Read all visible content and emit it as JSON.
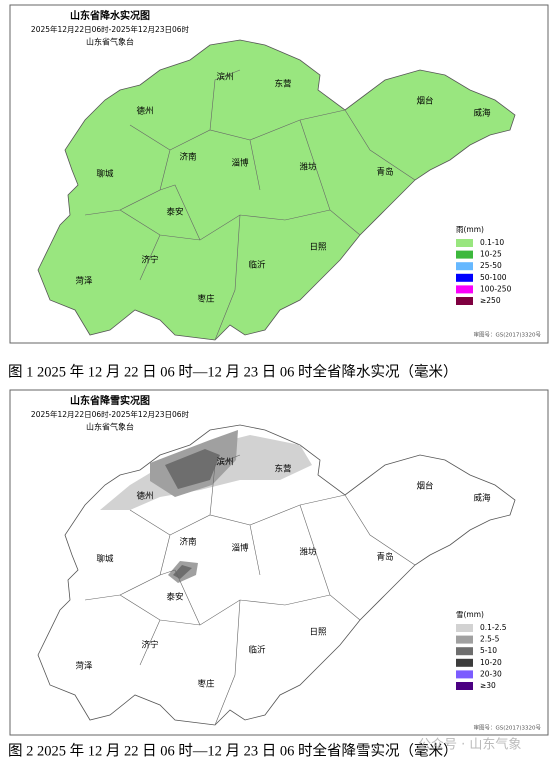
{
  "figures": [
    {
      "title": "山东省降水实况图",
      "period": "2025年12月22日06时-2025年12月23日06时",
      "issuer": "山东省气象台",
      "cities": [
        "滨州",
        "东营",
        "烟台",
        "威海",
        "德州",
        "济南",
        "淄博",
        "潍坊",
        "青岛",
        "聊城",
        "泰安",
        "日照",
        "济宁",
        "临沂",
        "菏泽",
        "枣庄"
      ],
      "legend": {
        "title": "雨(mm)",
        "items": [
          {
            "label": "0.1-10",
            "color": "#99e67f"
          },
          {
            "label": "10-25",
            "color": "#3cb83c"
          },
          {
            "label": "25-50",
            "color": "#66b8ff"
          },
          {
            "label": "50-100",
            "color": "#0000fe"
          },
          {
            "label": "100-250",
            "color": "#fa00fa"
          },
          {
            "label": "≥250",
            "color": "#7f0040"
          }
        ]
      },
      "approval": "审图号：GS(2017)3320号",
      "caption": "图 1 2025 年 12 月 22 日 06 时—12 月 23 日 06 时全省降水实况（毫米）"
    },
    {
      "title": "山东省降雪实况图",
      "period": "2025年12月22日06时-2025年12月23日06时",
      "issuer": "山东省气象台",
      "cities": [
        "滨州",
        "东营",
        "烟台",
        "威海",
        "德州",
        "济南",
        "淄博",
        "潍坊",
        "青岛",
        "聊城",
        "泰安",
        "日照",
        "济宁",
        "临沂",
        "菏泽",
        "枣庄"
      ],
      "legend": {
        "title": "雪(mm)",
        "items": [
          {
            "label": "0.1-2.5",
            "color": "#d2d2d2"
          },
          {
            "label": "2.5-5",
            "color": "#a0a0a0"
          },
          {
            "label": "5-10",
            "color": "#6e6e6e"
          },
          {
            "label": "10-20",
            "color": "#3c3c3c"
          },
          {
            "label": "20-30",
            "color": "#7b5cff"
          },
          {
            "label": "≥30",
            "color": "#4b0082"
          }
        ]
      },
      "approval": "审图号：GS(2017)3320号",
      "caption": "图 2 2025 年 12 月 22 日 06 时—12 月 23 日 06 时全省降雪实况（毫米）"
    }
  ],
  "watermark": "公众号 · 山东气象"
}
